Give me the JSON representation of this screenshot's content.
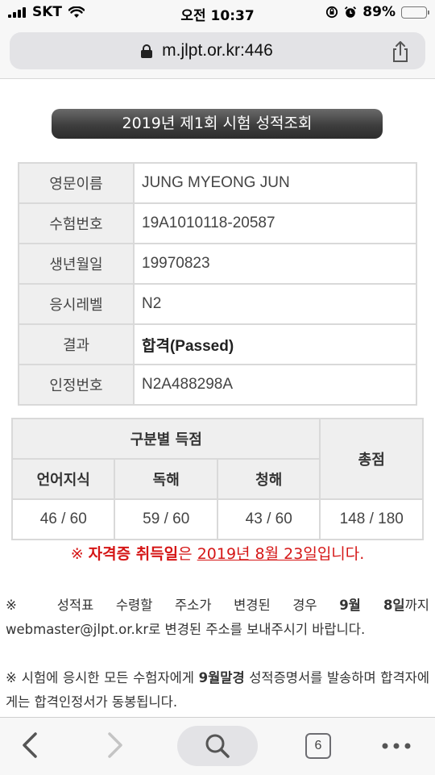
{
  "status_bar": {
    "carrier": "SKT",
    "time": "오전 10:37",
    "battery": "89%",
    "battery_level": 0.89
  },
  "browser": {
    "url": "m.jlpt.or.kr:446",
    "tab_count": "6"
  },
  "title": "2019년 제1회 시험 성적조회",
  "info_rows": [
    {
      "label": "영문이름",
      "value": "JUNG MYEONG JUN"
    },
    {
      "label": "수험번호",
      "value": "19A1010118-20587"
    },
    {
      "label": "생년월일",
      "value": "19970823"
    },
    {
      "label": "응시레벨",
      "value": "N2"
    },
    {
      "label": "결과",
      "value": "합격(Passed)"
    },
    {
      "label": "인정번호",
      "value": "N2A488298A"
    }
  ],
  "scores": {
    "section_header": "구분별 득점",
    "total_header": "총점",
    "columns": [
      "언어지식",
      "독해",
      "청해"
    ],
    "values": [
      "46 / 60",
      "59 / 60",
      "43 / 60"
    ],
    "total": "148 / 180"
  },
  "certificate_notice": {
    "prefix": "※ ",
    "bold": "자격증 취득일",
    "mid": "은 ",
    "date": "2019년 8월 23일",
    "suffix": "입니다."
  },
  "notice_1": {
    "prefix": "※ 성적표 수령할 주소가 변경된 경우 ",
    "bold": "9월 8일",
    "suffix": "까지 webmaster@jlpt.or.kr로 변경된 주소를 보내주시기 바랍니다."
  },
  "notice_2": {
    "prefix": "※ 시험에 응시한 모든 수험자에게 ",
    "bold": "9월말경",
    "suffix": " 성적증명서를 발송하며 합격자에게는 합격인정서가 동봉됩니다."
  },
  "colors": {
    "accent_red": "#d51616",
    "header_bg": "#efefef",
    "banner": "#3e3e3e"
  }
}
